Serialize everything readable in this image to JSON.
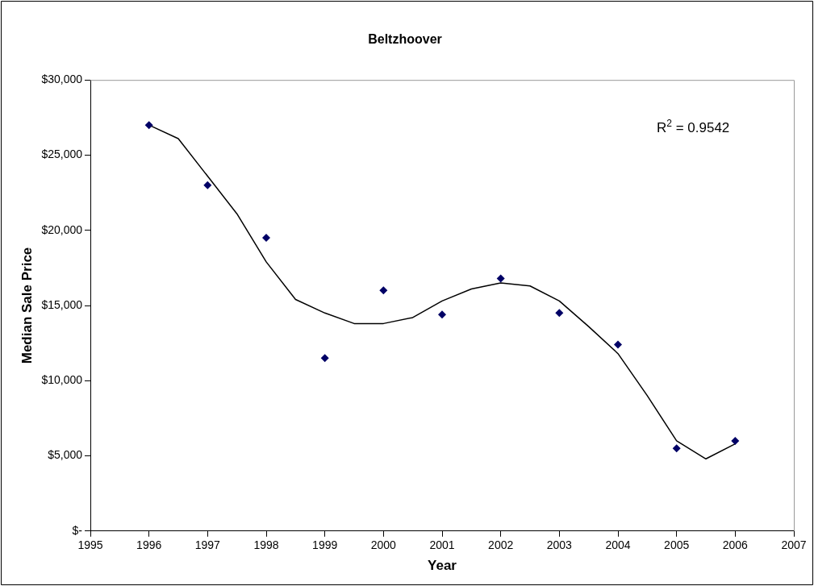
{
  "chart_data": {
    "type": "scatter",
    "title": "Beltzhoover",
    "xlabel": "Year",
    "ylabel": "Median Sale Price",
    "xlim": [
      1995,
      2007
    ],
    "xticks": [
      1995,
      1996,
      1997,
      1998,
      1999,
      2000,
      2001,
      2002,
      2003,
      2004,
      2005,
      2006,
      2007
    ],
    "ylim": [
      0,
      30000
    ],
    "yticks": [
      {
        "value": 0,
        "label": "$-"
      },
      {
        "value": 5000,
        "label": "$5,000"
      },
      {
        "value": 10000,
        "label": "$10,000"
      },
      {
        "value": 15000,
        "label": "$15,000"
      },
      {
        "value": 20000,
        "label": "$20,000"
      },
      {
        "value": 25000,
        "label": "$25,000"
      },
      {
        "value": 30000,
        "label": "$30,000"
      }
    ],
    "grid": false,
    "legend": false,
    "marker": "diamond",
    "annotations": [
      "R$^{2}$ = 0.9542"
    ],
    "series": [
      {
        "color": "#000066",
        "x": [
          1996,
          1997,
          1998,
          1999,
          2000,
          2001,
          2002,
          2003,
          2004,
          2005,
          2006
        ],
        "values": [
          27000,
          23000,
          19500,
          11500,
          16000,
          14400,
          16800,
          14500,
          12400,
          5500,
          6000
        ]
      },
      {
        "type": "line",
        "color": "#000000",
        "marker": "none",
        "x": [
          1996,
          1996.5,
          1997,
          1997.5,
          1998,
          1998.5,
          1999,
          1999.5,
          2000,
          2000.5,
          2001,
          2001.5,
          2002,
          2002.5,
          2003,
          2003.5,
          2004,
          2004.5,
          2005,
          2005.5,
          2006
        ],
        "values": [
          27000,
          26100,
          23600,
          21100,
          17900,
          15400,
          14500,
          13800,
          13800,
          14200,
          15300,
          16100,
          16500,
          16300,
          15300,
          13600,
          11800,
          9000,
          6000,
          4800,
          5800
        ]
      }
    ]
  }
}
